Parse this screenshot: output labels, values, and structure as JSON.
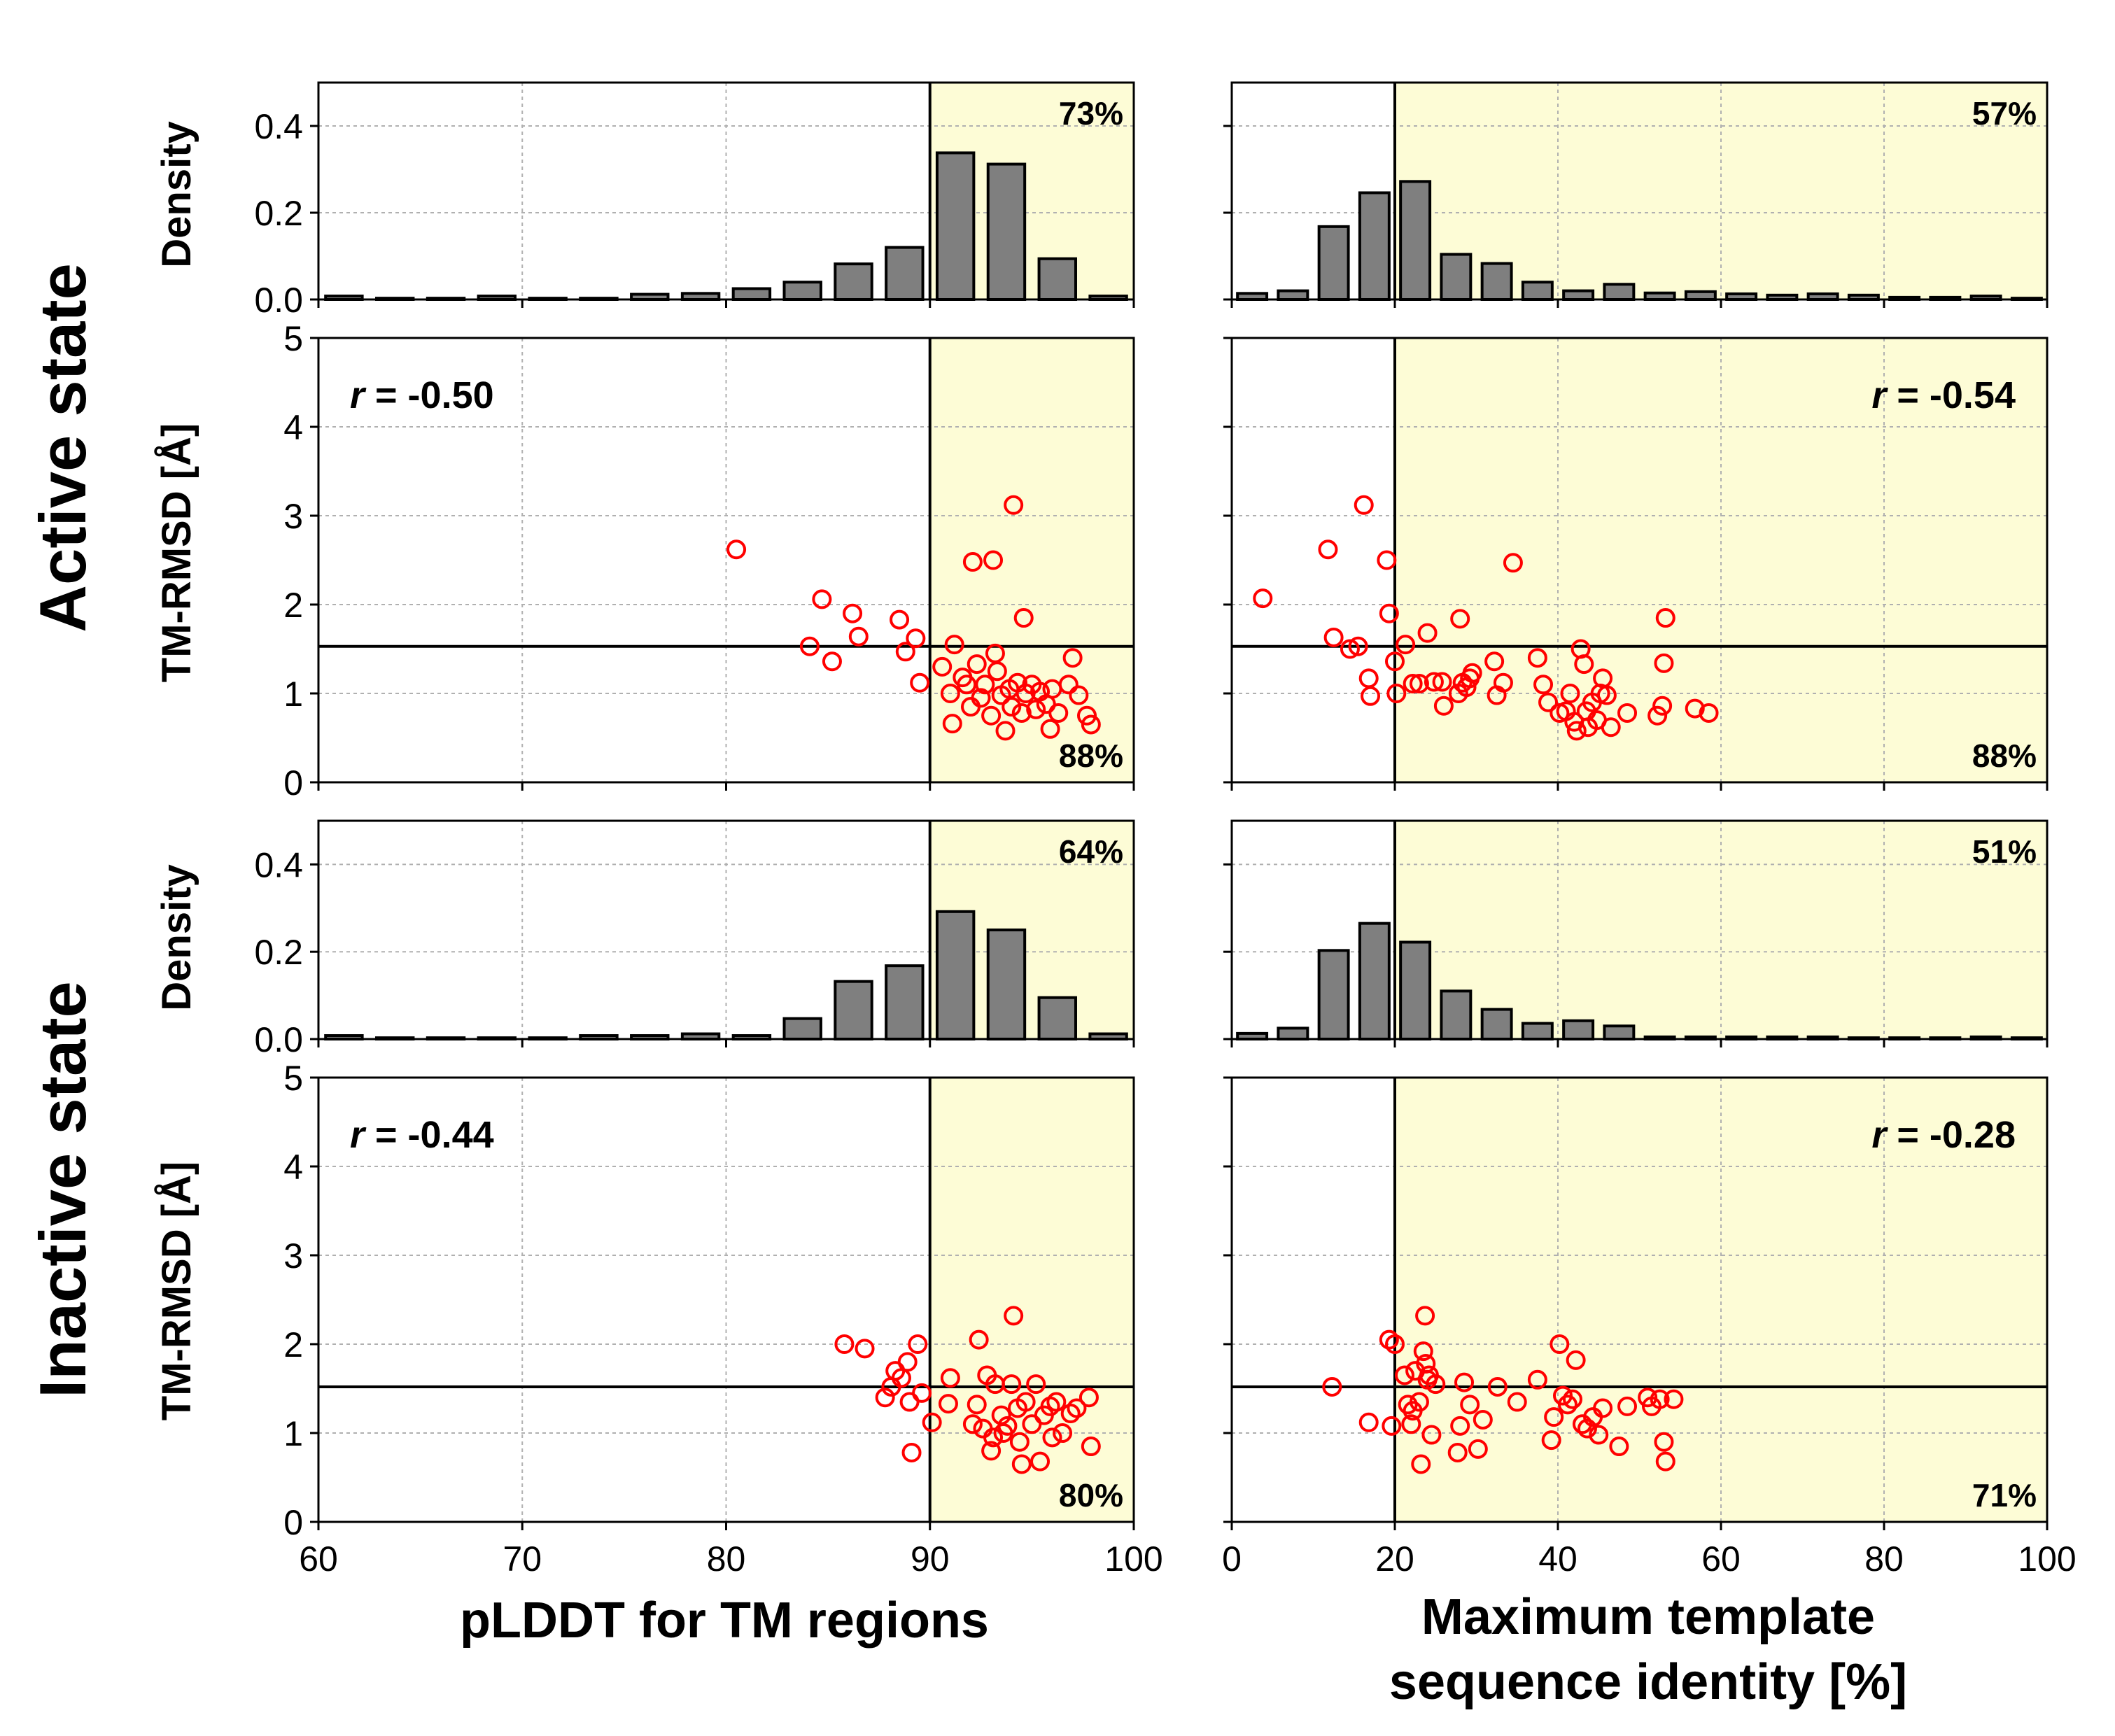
{
  "row_labels": {
    "active": "Active state",
    "inactive": "Inactive state"
  },
  "axis_labels": {
    "density": "Density",
    "rmsd": "TM-RMSD [Å]",
    "plddt": "pLDDT for TM regions",
    "identity_line1": "Maximum template",
    "identity_line2": "sequence identity [%]"
  },
  "colors": {
    "bar_fill": "#7f7f7f",
    "bar_edge": "#000000",
    "highlight": "#fdfcd6",
    "marker": "#ff0000",
    "grid": "#b0b0b0"
  },
  "chart_data": [
    {
      "id": "active_plddt_hist",
      "type": "bar",
      "xlim": [
        60,
        100
      ],
      "ylim": [
        0,
        0.5
      ],
      "yticks": [
        0.0,
        0.2,
        0.4
      ],
      "ytick_labels": [
        "0.0",
        "0.2",
        "0.4"
      ],
      "xticks": [
        60,
        70,
        80,
        90,
        100
      ],
      "threshold_x": 90,
      "shade_from": 90,
      "shade_to": 100,
      "annotation": "73%",
      "annotation_pos": "top-right",
      "bin_width": 2.5,
      "bins": [
        61.25,
        63.75,
        66.25,
        68.75,
        71.25,
        73.75,
        76.25,
        78.75,
        81.25,
        83.75,
        86.25,
        88.75,
        91.25,
        93.75,
        96.25,
        98.75
      ],
      "values": [
        0.008,
        0.003,
        0.003,
        0.008,
        0.003,
        0.003,
        0.012,
        0.014,
        0.025,
        0.04,
        0.082,
        0.12,
        0.338,
        0.312,
        0.094,
        0.008
      ]
    },
    {
      "id": "active_identity_hist",
      "type": "bar",
      "xlim": [
        0,
        100
      ],
      "ylim": [
        0,
        0.5
      ],
      "yticks": [
        0.0,
        0.2,
        0.4
      ],
      "xticks": [
        0,
        20,
        40,
        60,
        80,
        100
      ],
      "threshold_x": 20,
      "shade_from": 20,
      "shade_to": 100,
      "annotation": "57%",
      "annotation_pos": "top-right",
      "bin_width": 5,
      "bins": [
        2.5,
        7.5,
        12.5,
        17.5,
        22.5,
        27.5,
        32.5,
        37.5,
        42.5,
        47.5,
        52.5,
        57.5,
        62.5,
        67.5,
        72.5,
        77.5,
        82.5,
        87.5,
        92.5,
        97.5
      ],
      "values": [
        0.014,
        0.02,
        0.168,
        0.246,
        0.272,
        0.104,
        0.083,
        0.04,
        0.02,
        0.035,
        0.015,
        0.018,
        0.013,
        0.01,
        0.013,
        0.01,
        0.005,
        0.005,
        0.008,
        0.003
      ]
    },
    {
      "id": "active_plddt_scatter",
      "type": "scatter",
      "xlim": [
        60,
        100
      ],
      "ylim": [
        0,
        5
      ],
      "yticks": [
        0,
        1,
        2,
        3,
        4,
        5
      ],
      "ytick_labels": [
        "0",
        "1",
        "2",
        "3",
        "4",
        "5"
      ],
      "xticks": [
        60,
        70,
        80,
        90,
        100
      ],
      "threshold_x": 90,
      "threshold_y": 1.53,
      "shade_from": 90,
      "shade_to": 100,
      "r_prefix": "r",
      "r_value": " = -0.50",
      "r_pos": "top-left",
      "annotation": "88%",
      "annotation_pos": "bottom-right",
      "points": [
        [
          80.5,
          2.62
        ],
        [
          84.1,
          1.53
        ],
        [
          84.7,
          2.06
        ],
        [
          85.2,
          1.36
        ],
        [
          86.2,
          1.9
        ],
        [
          86.5,
          1.64
        ],
        [
          88.5,
          1.83
        ],
        [
          88.8,
          1.47
        ],
        [
          89.3,
          1.62
        ],
        [
          89.5,
          1.12
        ],
        [
          90.6,
          1.3
        ],
        [
          91.0,
          1.0
        ],
        [
          91.1,
          0.66
        ],
        [
          91.2,
          1.55
        ],
        [
          91.6,
          1.18
        ],
        [
          91.8,
          1.1
        ],
        [
          92.0,
          0.85
        ],
        [
          92.1,
          2.48
        ],
        [
          92.3,
          1.33
        ],
        [
          92.5,
          0.95
        ],
        [
          92.7,
          1.1
        ],
        [
          93.0,
          0.75
        ],
        [
          93.1,
          2.5
        ],
        [
          93.2,
          1.45
        ],
        [
          93.3,
          1.25
        ],
        [
          93.5,
          0.98
        ],
        [
          93.7,
          0.58
        ],
        [
          93.9,
          1.05
        ],
        [
          94.0,
          0.85
        ],
        [
          94.1,
          3.12
        ],
        [
          94.3,
          1.12
        ],
        [
          94.5,
          0.78
        ],
        [
          94.6,
          1.85
        ],
        [
          94.7,
          1.0
        ],
        [
          95.0,
          1.1
        ],
        [
          95.2,
          0.82
        ],
        [
          95.4,
          1.02
        ],
        [
          95.7,
          0.88
        ],
        [
          95.9,
          0.6
        ],
        [
          96.0,
          1.05
        ],
        [
          96.3,
          0.78
        ],
        [
          96.8,
          1.1
        ],
        [
          97.0,
          1.4
        ],
        [
          97.3,
          0.98
        ],
        [
          97.7,
          0.75
        ],
        [
          97.9,
          0.65
        ]
      ]
    },
    {
      "id": "active_identity_scatter",
      "type": "scatter",
      "xlim": [
        0,
        100
      ],
      "ylim": [
        0,
        5
      ],
      "yticks": [
        0,
        1,
        2,
        3,
        4,
        5
      ],
      "xticks": [
        0,
        20,
        40,
        60,
        80,
        100
      ],
      "threshold_x": 20,
      "threshold_y": 1.53,
      "shade_from": 20,
      "shade_to": 100,
      "r_prefix": "r",
      "r_value": " = -0.54",
      "r_pos": "top-right",
      "annotation": "88%",
      "annotation_pos": "bottom-right",
      "points": [
        [
          3.8,
          2.07
        ],
        [
          11.8,
          2.62
        ],
        [
          12.5,
          1.63
        ],
        [
          14.5,
          1.5
        ],
        [
          15.5,
          1.53
        ],
        [
          16.2,
          3.12
        ],
        [
          16.8,
          1.17
        ],
        [
          17.0,
          0.97
        ],
        [
          19.0,
          2.5
        ],
        [
          19.3,
          1.9
        ],
        [
          20.0,
          1.36
        ],
        [
          20.2,
          1.0
        ],
        [
          21.3,
          1.55
        ],
        [
          22.2,
          1.11
        ],
        [
          23.0,
          1.11
        ],
        [
          24.0,
          1.68
        ],
        [
          24.8,
          1.13
        ],
        [
          25.8,
          1.13
        ],
        [
          26.0,
          0.86
        ],
        [
          27.8,
          1.0
        ],
        [
          28.0,
          1.84
        ],
        [
          28.3,
          1.12
        ],
        [
          28.8,
          1.07
        ],
        [
          29.2,
          1.17
        ],
        [
          29.5,
          1.23
        ],
        [
          32.2,
          1.36
        ],
        [
          32.5,
          0.98
        ],
        [
          33.3,
          1.12
        ],
        [
          34.5,
          2.47
        ],
        [
          37.5,
          1.4
        ],
        [
          38.2,
          1.1
        ],
        [
          38.8,
          0.9
        ],
        [
          40.2,
          0.78
        ],
        [
          41.0,
          0.8
        ],
        [
          41.5,
          1.0
        ],
        [
          42.0,
          0.68
        ],
        [
          42.3,
          0.58
        ],
        [
          42.8,
          1.5
        ],
        [
          43.2,
          1.33
        ],
        [
          43.5,
          0.8
        ],
        [
          43.7,
          0.62
        ],
        [
          44.2,
          0.9
        ],
        [
          44.8,
          0.7
        ],
        [
          45.2,
          1.0
        ],
        [
          45.5,
          1.17
        ],
        [
          46.0,
          0.98
        ],
        [
          46.5,
          0.62
        ],
        [
          48.5,
          0.78
        ],
        [
          52.2,
          0.75
        ],
        [
          52.8,
          0.86
        ],
        [
          53.0,
          1.34
        ],
        [
          53.2,
          1.85
        ],
        [
          56.8,
          0.83
        ],
        [
          58.5,
          0.78
        ]
      ]
    },
    {
      "id": "inactive_plddt_hist",
      "type": "bar",
      "xlim": [
        60,
        100
      ],
      "ylim": [
        0,
        0.5
      ],
      "yticks": [
        0.0,
        0.2,
        0.4
      ],
      "ytick_labels": [
        "0.0",
        "0.2",
        "0.4"
      ],
      "xticks": [
        60,
        70,
        80,
        90,
        100
      ],
      "threshold_x": 90,
      "shade_from": 90,
      "shade_to": 100,
      "annotation": "64%",
      "annotation_pos": "top-right",
      "bin_width": 2.5,
      "bins": [
        61.25,
        63.75,
        66.25,
        68.75,
        71.25,
        73.75,
        76.25,
        78.75,
        81.25,
        83.75,
        86.25,
        88.75,
        91.25,
        93.75,
        96.25,
        98.75
      ],
      "values": [
        0.008,
        0.003,
        0.003,
        0.003,
        0.003,
        0.008,
        0.008,
        0.012,
        0.008,
        0.047,
        0.132,
        0.168,
        0.292,
        0.25,
        0.095,
        0.012
      ]
    },
    {
      "id": "inactive_identity_hist",
      "type": "bar",
      "xlim": [
        0,
        100
      ],
      "ylim": [
        0,
        0.5
      ],
      "yticks": [
        0.0,
        0.2,
        0.4
      ],
      "xticks": [
        0,
        20,
        40,
        60,
        80,
        100
      ],
      "threshold_x": 20,
      "shade_from": 20,
      "shade_to": 100,
      "annotation": "51%",
      "annotation_pos": "top-right",
      "bin_width": 5,
      "bins": [
        2.5,
        7.5,
        12.5,
        17.5,
        22.5,
        27.5,
        32.5,
        37.5,
        42.5,
        47.5,
        52.5,
        57.5,
        62.5,
        67.5,
        72.5,
        77.5,
        82.5,
        87.5,
        92.5,
        97.5
      ],
      "values": [
        0.013,
        0.025,
        0.203,
        0.265,
        0.222,
        0.11,
        0.068,
        0.036,
        0.042,
        0.03,
        0.005,
        0.005,
        0.005,
        0.005,
        0.005,
        0.003,
        0.003,
        0.003,
        0.005,
        0.003
      ]
    },
    {
      "id": "inactive_plddt_scatter",
      "type": "scatter",
      "xlim": [
        60,
        100
      ],
      "ylim": [
        0,
        5
      ],
      "yticks": [
        0,
        1,
        2,
        3,
        4,
        5
      ],
      "ytick_labels": [
        "0",
        "1",
        "2",
        "3",
        "4",
        "5"
      ],
      "xticks": [
        60,
        70,
        80,
        90,
        100
      ],
      "xtick_labels": [
        "60",
        "70",
        "80",
        "90",
        "100"
      ],
      "threshold_x": 90,
      "threshold_y": 1.52,
      "shade_from": 90,
      "shade_to": 100,
      "r_prefix": "r",
      "r_value": " = -0.44",
      "r_pos": "top-left",
      "annotation": "80%",
      "annotation_pos": "bottom-right",
      "points": [
        [
          85.8,
          2.0
        ],
        [
          86.8,
          1.95
        ],
        [
          87.8,
          1.4
        ],
        [
          88.1,
          1.52
        ],
        [
          88.3,
          1.7
        ],
        [
          88.6,
          1.62
        ],
        [
          88.9,
          1.8
        ],
        [
          89.0,
          1.35
        ],
        [
          89.1,
          0.78
        ],
        [
          89.4,
          2.0
        ],
        [
          89.6,
          1.45
        ],
        [
          90.1,
          1.12
        ],
        [
          90.9,
          1.33
        ],
        [
          91.0,
          1.62
        ],
        [
          92.1,
          1.1
        ],
        [
          92.3,
          1.32
        ],
        [
          92.4,
          2.05
        ],
        [
          92.6,
          1.05
        ],
        [
          92.8,
          1.65
        ],
        [
          93.0,
          0.8
        ],
        [
          93.1,
          0.95
        ],
        [
          93.2,
          1.55
        ],
        [
          93.5,
          1.2
        ],
        [
          93.6,
          1.0
        ],
        [
          93.8,
          1.08
        ],
        [
          94.0,
          1.55
        ],
        [
          94.1,
          2.32
        ],
        [
          94.3,
          1.28
        ],
        [
          94.4,
          0.9
        ],
        [
          94.5,
          0.65
        ],
        [
          94.7,
          1.35
        ],
        [
          95.0,
          1.1
        ],
        [
          95.2,
          1.55
        ],
        [
          95.4,
          0.68
        ],
        [
          95.6,
          1.2
        ],
        [
          95.9,
          1.3
        ],
        [
          96.0,
          0.95
        ],
        [
          96.2,
          1.35
        ],
        [
          96.5,
          1.0
        ],
        [
          96.9,
          1.22
        ],
        [
          97.2,
          1.28
        ],
        [
          97.8,
          1.4
        ],
        [
          97.9,
          0.85
        ]
      ]
    },
    {
      "id": "inactive_identity_scatter",
      "type": "scatter",
      "xlim": [
        0,
        100
      ],
      "ylim": [
        0,
        5
      ],
      "yticks": [
        0,
        1,
        2,
        3,
        4,
        5
      ],
      "xticks": [
        0,
        20,
        40,
        60,
        80,
        100
      ],
      "xtick_labels": [
        "0",
        "20",
        "40",
        "60",
        "80",
        "100"
      ],
      "threshold_x": 20,
      "threshold_y": 1.52,
      "shade_from": 20,
      "shade_to": 100,
      "r_prefix": "r",
      "r_value": " = -0.28",
      "r_pos": "top-right",
      "annotation": "71%",
      "annotation_pos": "bottom-right",
      "points": [
        [
          12.3,
          1.52
        ],
        [
          16.8,
          1.12
        ],
        [
          19.3,
          2.05
        ],
        [
          19.6,
          1.08
        ],
        [
          20.0,
          2.0
        ],
        [
          21.2,
          1.65
        ],
        [
          21.6,
          1.32
        ],
        [
          22.0,
          1.1
        ],
        [
          22.2,
          1.25
        ],
        [
          22.5,
          1.7
        ],
        [
          23.0,
          1.35
        ],
        [
          23.2,
          0.65
        ],
        [
          23.5,
          1.92
        ],
        [
          23.7,
          2.32
        ],
        [
          23.8,
          1.78
        ],
        [
          24.0,
          1.6
        ],
        [
          24.2,
          1.65
        ],
        [
          24.5,
          0.98
        ],
        [
          25.0,
          1.55
        ],
        [
          27.7,
          0.78
        ],
        [
          28.0,
          1.08
        ],
        [
          28.5,
          1.57
        ],
        [
          29.2,
          1.32
        ],
        [
          30.2,
          0.82
        ],
        [
          30.8,
          1.15
        ],
        [
          32.6,
          1.52
        ],
        [
          35.0,
          1.35
        ],
        [
          37.5,
          1.6
        ],
        [
          39.2,
          0.92
        ],
        [
          39.5,
          1.18
        ],
        [
          40.2,
          2.0
        ],
        [
          40.6,
          1.42
        ],
        [
          41.2,
          1.32
        ],
        [
          41.8,
          1.38
        ],
        [
          42.2,
          1.82
        ],
        [
          43.0,
          1.1
        ],
        [
          43.6,
          1.05
        ],
        [
          44.3,
          1.18
        ],
        [
          45.0,
          0.98
        ],
        [
          45.5,
          1.28
        ],
        [
          47.5,
          0.85
        ],
        [
          48.5,
          1.3
        ],
        [
          51.0,
          1.4
        ],
        [
          51.5,
          1.3
        ],
        [
          52.5,
          1.38
        ],
        [
          53.0,
          0.9
        ],
        [
          53.2,
          0.68
        ],
        [
          54.2,
          1.38
        ]
      ]
    }
  ]
}
